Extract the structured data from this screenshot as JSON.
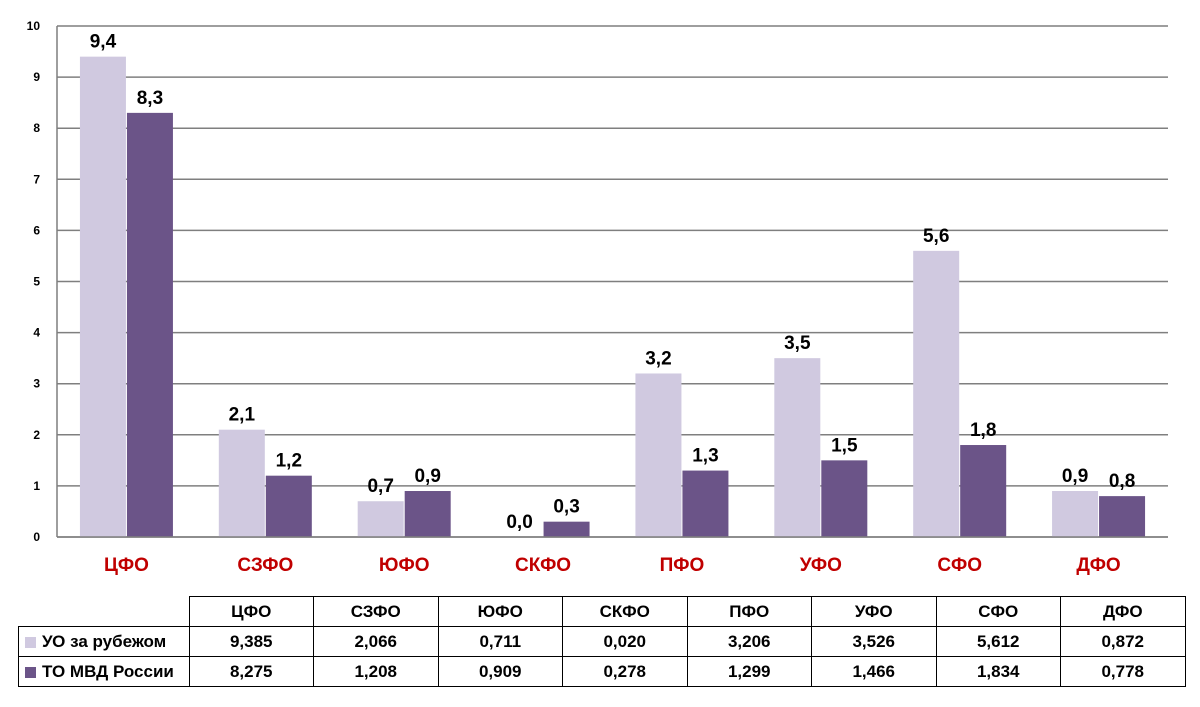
{
  "chart_data": {
    "type": "bar",
    "categories": [
      "ЦФО",
      "СЗФО",
      "ЮФО",
      "СКФО",
      "ПФО",
      "УФО",
      "СФО",
      "ДФО"
    ],
    "series": [
      {
        "name": "УО за рубежом",
        "color": "#d0c9e0",
        "values": [
          9.4,
          2.1,
          0.7,
          0.0,
          3.2,
          3.5,
          5.6,
          0.9
        ],
        "labels": [
          "9,4",
          "2,1",
          "0,7",
          "0,0",
          "3,2",
          "3,5",
          "5,6",
          "0,9"
        ],
        "table_values": [
          "9,385",
          "2,066",
          "0,711",
          "0,020",
          "3,206",
          "3,526",
          "5,612",
          "0,872"
        ]
      },
      {
        "name": "ТО МВД России",
        "color": "#6b5488",
        "values": [
          8.3,
          1.2,
          0.9,
          0.3,
          1.3,
          1.5,
          1.8,
          0.8
        ],
        "labels": [
          "8,3",
          "1,2",
          "0,9",
          "0,3",
          "1,3",
          "1,5",
          "1,8",
          "0,8"
        ],
        "table_values": [
          "8,275",
          "1,208",
          "0,909",
          "0,278",
          "1,299",
          "1,466",
          "1,834",
          "0,778"
        ]
      }
    ],
    "ylim": [
      0,
      10
    ],
    "yticks": [
      "0",
      "1",
      "2",
      "3",
      "4",
      "5",
      "6",
      "7",
      "8",
      "9",
      "10"
    ],
    "grid": true,
    "category_label_color": "#c00000",
    "gridline_color": "#7f7f7f",
    "legend": "data-table-below"
  }
}
